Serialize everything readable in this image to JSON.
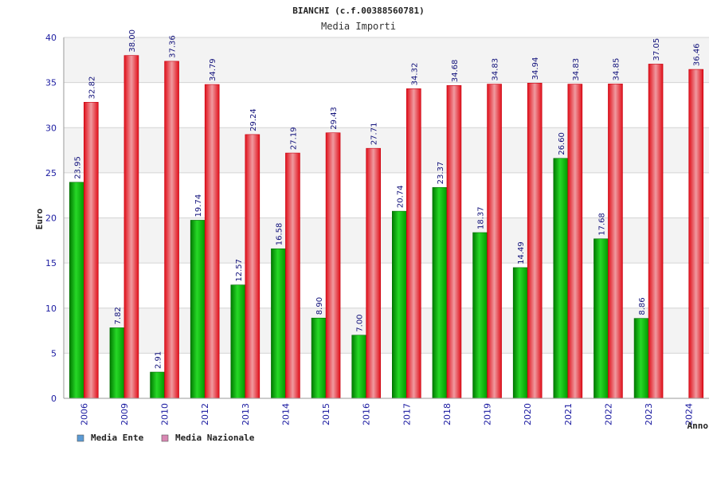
{
  "chart_data": {
    "type": "bar",
    "title": "BIANCHI (c.f.00388560781)",
    "subtitle": "Media Importi",
    "ylabel": "Euro",
    "xlabel": "Anno",
    "ylim": [
      0,
      40
    ],
    "yticks": [
      0,
      5,
      10,
      15,
      20,
      25,
      30,
      35,
      40
    ],
    "grid": true,
    "legend_position": "bottom-left",
    "categories": [
      "2006",
      "2009",
      "2010",
      "2012",
      "2013",
      "2014",
      "2015",
      "2016",
      "2017",
      "2018",
      "2019",
      "2020",
      "2021",
      "2022",
      "2023",
      "2024"
    ],
    "series": [
      {
        "name": "Media Ente",
        "color": "#00b000",
        "legend_color": "#5b9bd5",
        "values": [
          23.95,
          7.82,
          2.91,
          19.74,
          12.57,
          16.58,
          8.9,
          7.0,
          20.74,
          23.37,
          18.37,
          14.49,
          26.6,
          17.68,
          8.86,
          null
        ],
        "labels": [
          "23.95",
          "7.82",
          "2.91",
          "19.74",
          "12.57",
          "16.58",
          "8.90",
          "7.00",
          "20.74",
          "23.37",
          "18.37",
          "14.49",
          "26.60",
          "17.68",
          "8.86",
          ""
        ]
      },
      {
        "name": "Media Nazionale",
        "color": "#e8141c",
        "legend_color": "#d987b3",
        "values": [
          32.82,
          38.0,
          37.36,
          34.79,
          29.24,
          27.19,
          29.43,
          27.71,
          34.32,
          34.68,
          34.83,
          34.94,
          34.83,
          34.85,
          37.05,
          36.46
        ],
        "labels": [
          "32.82",
          "38.00",
          "37.36",
          "34.79",
          "29.24",
          "27.19",
          "29.43",
          "27.71",
          "34.32",
          "34.68",
          "34.83",
          "34.94",
          "34.83",
          "34.85",
          "37.05",
          "36.46"
        ]
      }
    ]
  }
}
